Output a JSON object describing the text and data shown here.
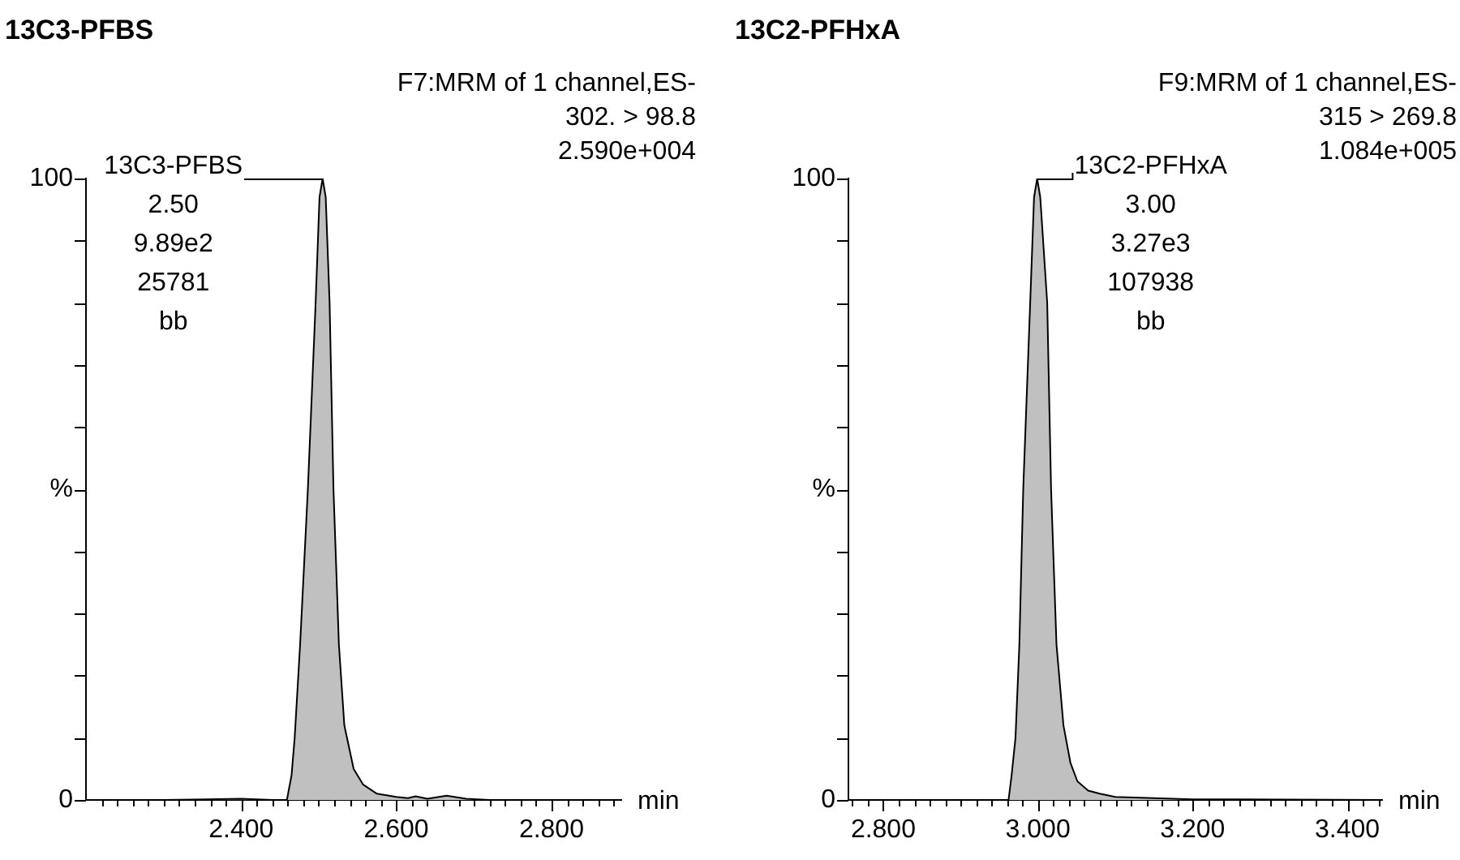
{
  "chart_data": [
    {
      "type": "area",
      "title": "13C3-PFBS",
      "xlabel": "min",
      "x": [
        2.2,
        2.3,
        2.4,
        2.44,
        2.459,
        2.465,
        2.469,
        2.476,
        2.486,
        2.496,
        2.501,
        2.505,
        2.509,
        2.514,
        2.519,
        2.526,
        2.533,
        2.545,
        2.557,
        2.575,
        2.6,
        2.615,
        2.625,
        2.64,
        2.665,
        2.69,
        2.72,
        2.89
      ],
      "series": [
        {
          "color": "#c0c0c0",
          "values": [
            0,
            0,
            0.2,
            0,
            0,
            4,
            10,
            25,
            50,
            80,
            97,
            100,
            97,
            80,
            50,
            25,
            12,
            5,
            2.5,
            1,
            0.5,
            0.3,
            0.6,
            0.2,
            0.7,
            0.2,
            0,
            0
          ]
        }
      ],
      "xlim": [
        2.2,
        2.89
      ],
      "xticks": [
        {
          "value": 2.22,
          "label": null
        },
        {
          "value": 2.24,
          "label": null
        },
        {
          "value": 2.26,
          "label": null
        },
        {
          "value": 2.28,
          "label": null
        },
        {
          "value": 2.3,
          "label": null
        },
        {
          "value": 2.32,
          "label": null
        },
        {
          "value": 2.34,
          "label": null
        },
        {
          "value": 2.36,
          "label": null
        },
        {
          "value": 2.38,
          "label": null
        },
        {
          "value": 2.4,
          "label": "2.400"
        },
        {
          "value": 2.42,
          "label": null
        },
        {
          "value": 2.44,
          "label": null
        },
        {
          "value": 2.46,
          "label": null
        },
        {
          "value": 2.48,
          "label": null
        },
        {
          "value": 2.5,
          "label": null
        },
        {
          "value": 2.52,
          "label": null
        },
        {
          "value": 2.54,
          "label": null
        },
        {
          "value": 2.56,
          "label": null
        },
        {
          "value": 2.58,
          "label": null
        },
        {
          "value": 2.6,
          "label": "2.600"
        },
        {
          "value": 2.62,
          "label": null
        },
        {
          "value": 2.64,
          "label": null
        },
        {
          "value": 2.66,
          "label": null
        },
        {
          "value": 2.68,
          "label": null
        },
        {
          "value": 2.7,
          "label": null
        },
        {
          "value": 2.72,
          "label": null
        },
        {
          "value": 2.74,
          "label": null
        },
        {
          "value": 2.76,
          "label": null
        },
        {
          "value": 2.78,
          "label": null
        },
        {
          "value": 2.8,
          "label": "2.800"
        },
        {
          "value": 2.82,
          "label": null
        },
        {
          "value": 2.84,
          "label": null
        },
        {
          "value": 2.86,
          "label": null
        },
        {
          "value": 2.88,
          "label": null
        }
      ],
      "ylim": [
        0,
        100
      ],
      "yticks": [
        {
          "value": 0,
          "label": "0"
        },
        {
          "value": 10,
          "label": null
        },
        {
          "value": 20,
          "label": null
        },
        {
          "value": 30,
          "label": null
        },
        {
          "value": 40,
          "label": null
        },
        {
          "value": 50,
          "label": "%"
        },
        {
          "value": 60,
          "label": null
        },
        {
          "value": 70,
          "label": null
        },
        {
          "value": 80,
          "label": null
        },
        {
          "value": 90,
          "label": null
        },
        {
          "value": 100,
          "label": "100"
        }
      ],
      "annotations": [
        "F7:MRM of 1 channel,ES-",
        "302. > 98.8",
        "2.590e+004",
        "13C3-PFBS\n2.50\n9.89e2\n25781\nbb"
      ]
    },
    {
      "type": "area",
      "title": "13C2-PFHxA",
      "xlabel": "min",
      "x": [
        2.755,
        2.9,
        2.962,
        2.966,
        2.971,
        2.976,
        2.981,
        2.99,
        2.995,
        2.999,
        3.003,
        3.012,
        3.017,
        3.024,
        3.033,
        3.042,
        3.051,
        3.065,
        3.08,
        3.1,
        3.15,
        3.2,
        3.25,
        3.445
      ],
      "series": [
        {
          "color": "#c0c0c0",
          "values": [
            0,
            0,
            0,
            4,
            10,
            25,
            50,
            80,
            97,
            100,
            97,
            80,
            50,
            25,
            12,
            6,
            3,
            1.5,
            1,
            0.5,
            0.3,
            0.1,
            0.1,
            0
          ]
        }
      ],
      "xlim": [
        2.755,
        3.445
      ],
      "xticks": [
        {
          "value": 2.76,
          "label": null
        },
        {
          "value": 2.78,
          "label": null
        },
        {
          "value": 2.8,
          "label": "2.800"
        },
        {
          "value": 2.82,
          "label": null
        },
        {
          "value": 2.84,
          "label": null
        },
        {
          "value": 2.86,
          "label": null
        },
        {
          "value": 2.88,
          "label": null
        },
        {
          "value": 2.9,
          "label": null
        },
        {
          "value": 2.92,
          "label": null
        },
        {
          "value": 2.94,
          "label": null
        },
        {
          "value": 2.96,
          "label": null
        },
        {
          "value": 2.98,
          "label": null
        },
        {
          "value": 3.0,
          "label": "3.000"
        },
        {
          "value": 3.02,
          "label": null
        },
        {
          "value": 3.04,
          "label": null
        },
        {
          "value": 3.06,
          "label": null
        },
        {
          "value": 3.08,
          "label": null
        },
        {
          "value": 3.1,
          "label": null
        },
        {
          "value": 3.12,
          "label": null
        },
        {
          "value": 3.14,
          "label": null
        },
        {
          "value": 3.16,
          "label": null
        },
        {
          "value": 3.18,
          "label": null
        },
        {
          "value": 3.2,
          "label": "3.200"
        },
        {
          "value": 3.22,
          "label": null
        },
        {
          "value": 3.24,
          "label": null
        },
        {
          "value": 3.26,
          "label": null
        },
        {
          "value": 3.28,
          "label": null
        },
        {
          "value": 3.3,
          "label": null
        },
        {
          "value": 3.32,
          "label": null
        },
        {
          "value": 3.34,
          "label": null
        },
        {
          "value": 3.36,
          "label": null
        },
        {
          "value": 3.38,
          "label": null
        },
        {
          "value": 3.4,
          "label": "3.400"
        },
        {
          "value": 3.42,
          "label": null
        },
        {
          "value": 3.44,
          "label": null
        }
      ],
      "ylim": [
        0,
        100
      ],
      "yticks": [
        {
          "value": 0,
          "label": "0"
        },
        {
          "value": 10,
          "label": null
        },
        {
          "value": 20,
          "label": null
        },
        {
          "value": 30,
          "label": null
        },
        {
          "value": 40,
          "label": null
        },
        {
          "value": 50,
          "label": "%"
        },
        {
          "value": 60,
          "label": null
        },
        {
          "value": 70,
          "label": null
        },
        {
          "value": 80,
          "label": null
        },
        {
          "value": 90,
          "label": null
        },
        {
          "value": 100,
          "label": "100"
        }
      ],
      "annotations": [
        "F9:MRM of 1 channel,ES-",
        "315 > 269.8",
        "1.084e+005",
        "13C2-PFHxA\n3.00\n3.27e3\n107938\nbb"
      ]
    }
  ]
}
